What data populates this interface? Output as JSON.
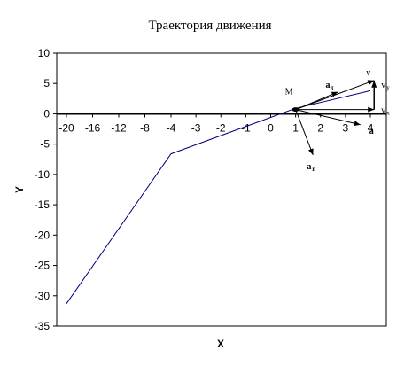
{
  "chart_data": {
    "type": "line",
    "title": "Траектория движения",
    "xlabel": "X",
    "ylabel": "Y",
    "x_tick_labels": [
      "-20",
      "-16",
      "-12",
      "-8",
      "-4",
      "-3",
      "-2",
      "-1",
      "0",
      "1",
      "2",
      "3",
      "4"
    ],
    "y_ticks": [
      10,
      5,
      0,
      -5,
      -10,
      -15,
      -20,
      -25,
      -30,
      -35
    ],
    "ylim": [
      -35,
      10
    ],
    "grid": false,
    "legend": "none",
    "series": [
      {
        "color": "#000080",
        "points": [
          {
            "x": -20,
            "y": -31.3
          },
          {
            "x": -4,
            "y": -6.6
          },
          {
            "x": 0.4,
            "y": 0
          },
          {
            "x": 1,
            "y": 0.9
          },
          {
            "x": 4,
            "y": 3.8
          }
        ]
      }
    ],
    "annotations": {
      "point": {
        "label": "M",
        "x": 1,
        "y": 0.7
      },
      "vectors": [
        {
          "label": "v",
          "sub": "",
          "bold": false,
          "to": {
            "x": 4.15,
            "y": 5.5
          }
        },
        {
          "label": "v",
          "sub": "y",
          "bold": false,
          "to": {
            "x": 4.15,
            "y": 5.5
          }
        },
        {
          "label": "v",
          "sub": "x",
          "bold": false,
          "to": {
            "x": 4.15,
            "y": 0.7
          }
        },
        {
          "label": "a",
          "sub": "τ",
          "bold": true,
          "to": {
            "x": 2.7,
            "y": 3.6
          }
        },
        {
          "label": "a",
          "sub": "",
          "bold": true,
          "to": {
            "x": 3.6,
            "y": -1.8
          }
        },
        {
          "label": "a",
          "sub": "n",
          "bold": true,
          "to": {
            "x": 1.7,
            "y": -6.8
          }
        }
      ]
    }
  }
}
